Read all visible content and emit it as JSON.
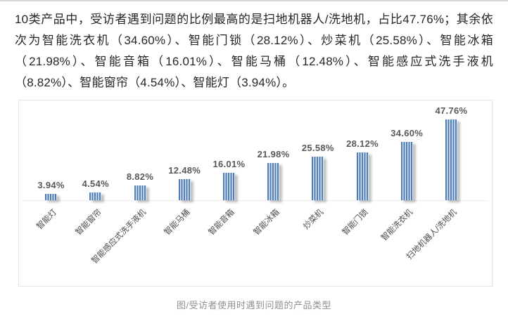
{
  "article": {
    "paragraph": "10类产品中，受访者遇到问题的比例最高的是扫地机器人/洗地机，占比47.76%；其余依次为智能洗衣机（34.60%）、智能门锁（28.12%）、炒菜机（25.58%）、智能冰箱（21.98%）、智能音箱（16.01%）、智能马桶（12.48%）、智能感应式洗手液机（8.82%）、智能窗帘（4.54%）、智能灯（3.94%）。"
  },
  "chart_data": {
    "type": "bar",
    "categories": [
      "智能灯",
      "智能窗帘",
      "智能感应式洗手液机",
      "智能马桶",
      "智能音箱",
      "智能冰箱",
      "炒菜机",
      "智能门锁",
      "智能洗衣机",
      "扫地机器人/洗地机"
    ],
    "values": [
      3.94,
      4.54,
      8.82,
      12.48,
      16.01,
      21.98,
      25.58,
      28.12,
      34.6,
      47.76
    ],
    "value_labels": [
      "3.94%",
      "4.54%",
      "8.82%",
      "12.48%",
      "16.01%",
      "21.98%",
      "25.58%",
      "28.12%",
      "34.60%",
      "47.76%"
    ],
    "title": "",
    "xlabel": "",
    "ylabel": "",
    "ylim": [
      0,
      50
    ],
    "grid": false,
    "legend": false,
    "style": {
      "bar_fill": "vertical-stripes",
      "stripe_color": "#4e7cb5",
      "stripe_gap_color": "#dce6f2",
      "value_label_color": "#595959",
      "category_label_color": "#4d4d4d",
      "axis_line_color": "#ececec",
      "card_border_color": "#e3e3e3"
    }
  },
  "caption": {
    "text": "图/受访者使用时遇到问题的产品类型"
  }
}
